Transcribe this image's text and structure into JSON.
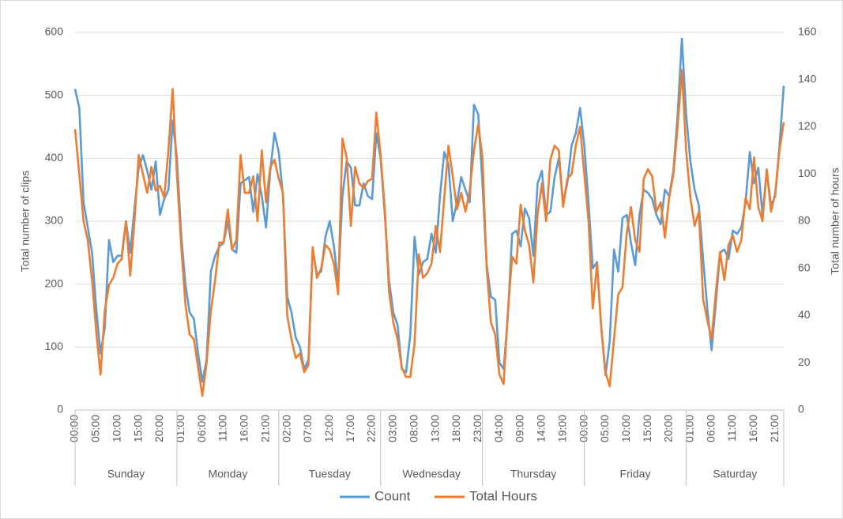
{
  "chart_data": {
    "type": "line",
    "categories": [
      "00:00",
      null,
      null,
      null,
      null,
      "05:00",
      null,
      null,
      null,
      null,
      "10:00",
      null,
      null,
      null,
      null,
      "15:00",
      null,
      null,
      null,
      null,
      "20:00",
      null,
      null,
      null,
      null,
      "01:00",
      null,
      null,
      null,
      null,
      "06:00",
      null,
      null,
      null,
      null,
      "11:00",
      null,
      null,
      null,
      null,
      "16:00",
      null,
      null,
      null,
      null,
      "21:00",
      null,
      null,
      null,
      null,
      "02:00",
      null,
      null,
      null,
      null,
      "07:00",
      null,
      null,
      null,
      null,
      "12:00",
      null,
      null,
      null,
      null,
      "17:00",
      null,
      null,
      null,
      null,
      "22:00",
      null,
      null,
      null,
      null,
      "03:00",
      null,
      null,
      null,
      null,
      "08:00",
      null,
      null,
      null,
      null,
      "13:00",
      null,
      null,
      null,
      null,
      "18:00",
      null,
      null,
      null,
      null,
      "23:00",
      null,
      null,
      null,
      null,
      "04:00",
      null,
      null,
      null,
      null,
      "09:00",
      null,
      null,
      null,
      null,
      "14:00",
      null,
      null,
      null,
      null,
      "19:00",
      null,
      null,
      null,
      null,
      "00:00",
      null,
      null,
      null,
      null,
      "05:00",
      null,
      null,
      null,
      null,
      "10:00",
      null,
      null,
      null,
      null,
      "15:00",
      null,
      null,
      null,
      null,
      "20:00",
      null,
      null,
      null,
      null,
      "01:00",
      null,
      null,
      null,
      null,
      "06:00",
      null,
      null,
      null,
      null,
      "11:00",
      null,
      null,
      null,
      null,
      "16:00",
      null,
      null,
      null,
      null,
      "21:00",
      null,
      null
    ],
    "days": [
      "Sunday",
      "Monday",
      "Tuesday",
      "Wednesday",
      "Thursday",
      "Friday",
      "Saturday"
    ],
    "ylabel": "Total number of clips",
    "y2label": "Total number of hours",
    "ylim": [
      0,
      600
    ],
    "yticks": [
      0,
      100,
      200,
      300,
      400,
      500,
      600
    ],
    "y2lim": [
      0,
      160
    ],
    "y2ticks": [
      0,
      20,
      40,
      60,
      80,
      100,
      120,
      140,
      160
    ],
    "grid": true,
    "legend": "bottom",
    "series": [
      {
        "name": "Count",
        "color": "#5b9bd5",
        "values": [
          510,
          480,
          330,
          290,
          250,
          160,
          90,
          130,
          270,
          235,
          245,
          245,
          300,
          250,
          320,
          385,
          405,
          380,
          350,
          395,
          310,
          335,
          350,
          460,
          400,
          280,
          200,
          155,
          145,
          90,
          45,
          80,
          220,
          245,
          260,
          265,
          300,
          255,
          250,
          360,
          365,
          370,
          315,
          375,
          340,
          290,
          380,
          440,
          410,
          340,
          180,
          155,
          115,
          100,
          65,
          80,
          255,
          215,
          220,
          275,
          300,
          260,
          200,
          340,
          395,
          385,
          325,
          325,
          360,
          340,
          335,
          440,
          400,
          310,
          205,
          155,
          135,
          65,
          60,
          120,
          275,
          215,
          235,
          240,
          280,
          250,
          340,
          410,
          390,
          300,
          330,
          370,
          350,
          330,
          485,
          470,
          360,
          230,
          180,
          175,
          75,
          65,
          150,
          280,
          285,
          260,
          320,
          305,
          245,
          360,
          380,
          310,
          315,
          370,
          400,
          330,
          360,
          420,
          440,
          480,
          420,
          330,
          225,
          235,
          130,
          55,
          110,
          255,
          220,
          305,
          310,
          265,
          230,
          310,
          350,
          345,
          335,
          310,
          295,
          350,
          340,
          380,
          470,
          590,
          470,
          395,
          350,
          325,
          240,
          160,
          95,
          170,
          250,
          255,
          240,
          285,
          280,
          290,
          330,
          410,
          360,
          385,
          310,
          380,
          325,
          340,
          420,
          515
        ]
      },
      {
        "name": "Total Hours",
        "color": "#ed7d31",
        "axis": "y2",
        "values": [
          119,
          100,
          80,
          72,
          55,
          33,
          15,
          42,
          53,
          56,
          62,
          64,
          80,
          57,
          80,
          108,
          100,
          92,
          103,
          93,
          95,
          90,
          110,
          136,
          100,
          70,
          45,
          32,
          30,
          18,
          6,
          20,
          42,
          55,
          71,
          71,
          85,
          68,
          72,
          108,
          92,
          92,
          99,
          80,
          110,
          88,
          103,
          106,
          98,
          92,
          40,
          30,
          22,
          24,
          16,
          19,
          69,
          56,
          60,
          70,
          68,
          62,
          49,
          115,
          107,
          78,
          103,
          96,
          94,
          97,
          98,
          126,
          108,
          85,
          50,
          37,
          30,
          18,
          14,
          14,
          28,
          66,
          56,
          58,
          62,
          78,
          67,
          90,
          112,
          99,
          85,
          92,
          84,
          93,
          110,
          121,
          107,
          60,
          37,
          32,
          15,
          11,
          42,
          65,
          62,
          87,
          76,
          70,
          54,
          83,
          96,
          80,
          106,
          112,
          110,
          86,
          98,
          100,
          112,
          120,
          100,
          80,
          43,
          62,
          35,
          16,
          10,
          30,
          49,
          52,
          75,
          86,
          72,
          67,
          98,
          102,
          99,
          84,
          88,
          73,
          90,
          100,
          120,
          144,
          110,
          90,
          78,
          84,
          47,
          38,
          30,
          50,
          67,
          55,
          70,
          74,
          67,
          72,
          90,
          85,
          107,
          86,
          80,
          102,
          84,
          92,
          110,
          122
        ]
      }
    ]
  }
}
